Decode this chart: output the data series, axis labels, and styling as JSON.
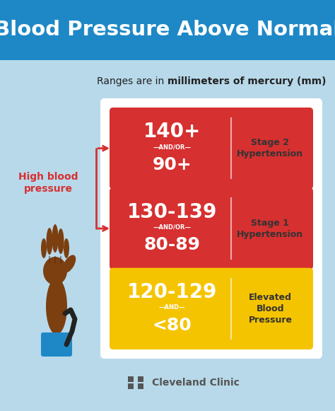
{
  "title": "Blood Pressure Above Normal",
  "title_bg": "#1e88c7",
  "title_color": "#ffffff",
  "body_bg": "#b8d9ea",
  "subtitle_normal": "Ranges are in ",
  "subtitle_bold": "millimeters of mercury (mm)",
  "subtitle_color": "#222222",
  "rows": [
    {
      "main_line1": "140+",
      "connector": "—AND/OR—",
      "main_line2": "90+",
      "label_line1": "Stage 2",
      "label_line2": "Hypertension",
      "row_color": "#d63030",
      "text_color": "#ffffff",
      "label_color": "#333333"
    },
    {
      "main_line1": "130-139",
      "connector": "—AND/OR—",
      "main_line2": "80-89",
      "label_line1": "Stage 1",
      "label_line2": "Hypertension",
      "row_color": "#d63030",
      "text_color": "#ffffff",
      "label_color": "#333333"
    },
    {
      "main_line1": "120-129",
      "connector": "—AND—",
      "main_line2": "<80",
      "label_line1": "Elevated",
      "label_line2": "Blood",
      "label_line3": "Pressure",
      "row_color": "#f5c400",
      "text_color": "#ffffff",
      "label_color": "#333333"
    }
  ],
  "high_bp_label": "High blood\npressure",
  "high_bp_color": "#d63030",
  "arm_color": "#7B3F10",
  "arm_dark": "#5a2d0c",
  "cuff_color": "#1e88c7",
  "tube_color": "#222222",
  "cleveland_color": "#555555",
  "cleveland_logo_color": "#555555",
  "cleveland_text": "Cleveland Clinic",
  "figsize": [
    4.74,
    5.81
  ],
  "dpi": 100
}
